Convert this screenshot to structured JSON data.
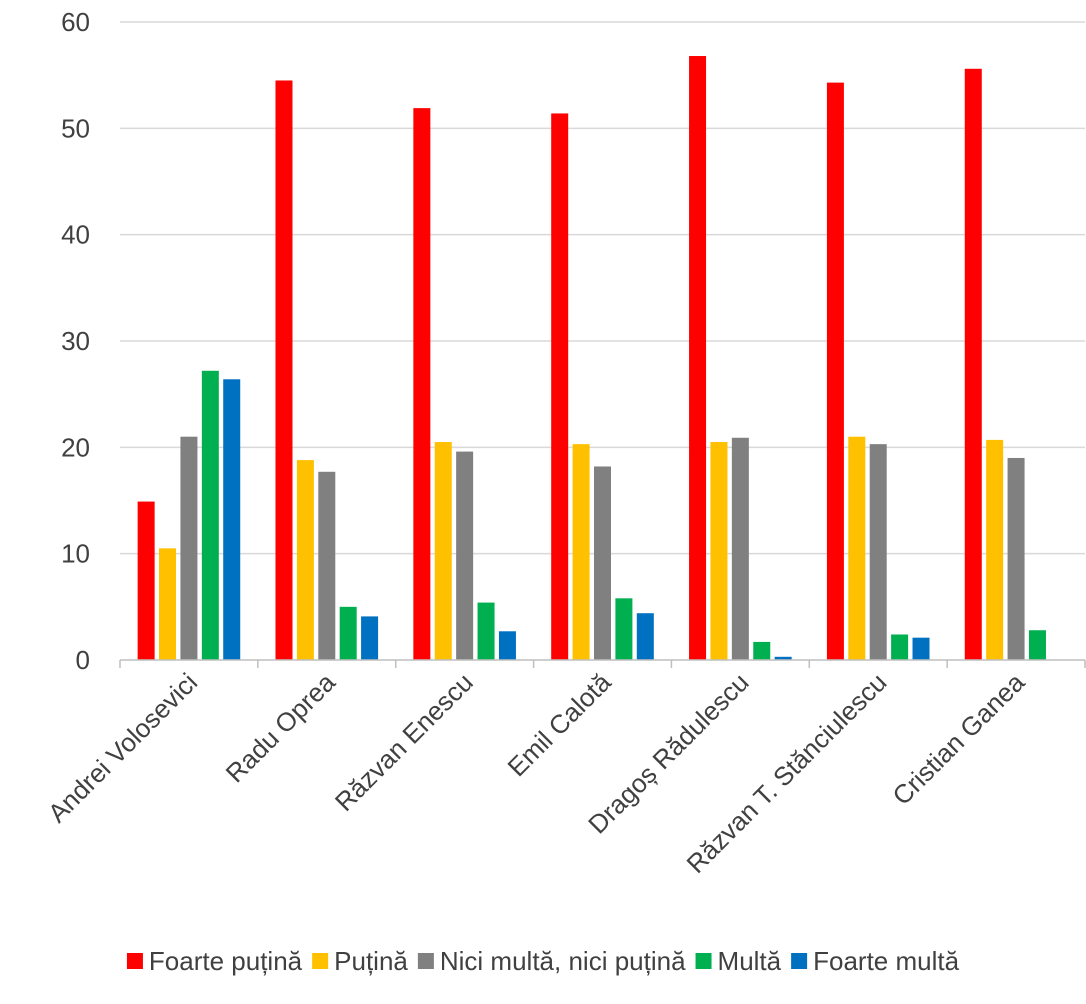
{
  "chart_data": {
    "type": "bar",
    "title": "",
    "xlabel": "",
    "ylabel": "",
    "ylim": [
      0,
      60
    ],
    "yticks": [
      0,
      10,
      20,
      30,
      40,
      50,
      60
    ],
    "grid": true,
    "legend_position": "bottom",
    "categories": [
      "Andrei Volosevici",
      "Radu Oprea",
      "Răzvan Enescu",
      "Emil Calotă",
      "Dragoș Rădulescu",
      "Răzvan T. Stănciulescu",
      "Cristian Ganea"
    ],
    "series": [
      {
        "name": "Foarte puțină",
        "color": "#ff0000",
        "values": [
          14.9,
          54.5,
          51.9,
          51.4,
          56.8,
          54.3,
          55.6
        ]
      },
      {
        "name": "Puțină",
        "color": "#ffc000",
        "values": [
          10.5,
          18.8,
          20.5,
          20.3,
          20.5,
          21.0,
          20.7
        ]
      },
      {
        "name": "Nici multă, nici puțină",
        "color": "#808080",
        "values": [
          21.0,
          17.7,
          19.6,
          18.2,
          20.9,
          20.3,
          19.0
        ]
      },
      {
        "name": "Multă",
        "color": "#00b050",
        "values": [
          27.2,
          5.0,
          5.4,
          5.8,
          1.7,
          2.4,
          2.8
        ]
      },
      {
        "name": "Foarte multă",
        "color": "#0070c0",
        "values": [
          26.4,
          4.1,
          2.7,
          4.4,
          0.3,
          2.1,
          0.0
        ]
      }
    ]
  }
}
